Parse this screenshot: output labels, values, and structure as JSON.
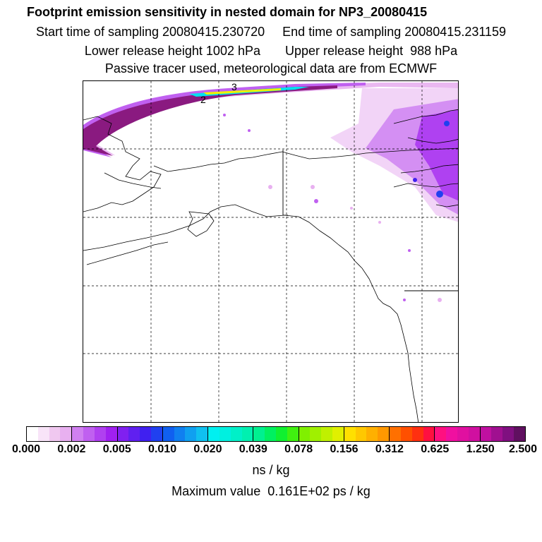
{
  "header": {
    "title": "Footprint emission sensitivity in nested domain for NP3_20080415",
    "sampling": "Start time of sampling 20080415.230720     End time of sampling 20080415.231159",
    "release": "Lower release height 1002 hPa       Upper release height  988 hPa",
    "tracer": "Passive tracer used, meteorological data are from ECMWF"
  },
  "map": {
    "contour_labels": [
      "2",
      "3"
    ],
    "colors": {
      "outline": "#000000",
      "grid": "#000000"
    }
  },
  "colorbar": {
    "tick_labels": [
      "0.000",
      "0.002",
      "0.005",
      "0.010",
      "0.020",
      "0.039",
      "0.078",
      "0.156",
      "0.312",
      "0.625",
      "1.250",
      "2.500"
    ],
    "segments": [
      [
        "#ffffff",
        "#f8e4f8",
        "#f0c8f0",
        "#e8b0f0"
      ],
      [
        "#d080f0",
        "#c060f0",
        "#b040f0",
        "#a020f0"
      ],
      [
        "#8020f0",
        "#6020f0",
        "#4020f0",
        "#2040f0"
      ],
      [
        "#1060f0",
        "#1080f0",
        "#10a0f0",
        "#10c0f0"
      ],
      [
        "#00f0f0",
        "#00f0e0",
        "#00f0c8",
        "#00f0b0"
      ],
      [
        "#00f090",
        "#00f060",
        "#10f030",
        "#40f010"
      ],
      [
        "#80f000",
        "#a0f000",
        "#c0f000",
        "#e0f000"
      ],
      [
        "#ffe000",
        "#ffc800",
        "#ffb000",
        "#ff9800"
      ],
      [
        "#ff7000",
        "#ff5000",
        "#ff3010",
        "#ff1040"
      ],
      [
        "#ff1080",
        "#f010a0",
        "#e010a0",
        "#d010a0"
      ],
      [
        "#c010a0",
        "#a01090",
        "#801080",
        "#601060"
      ]
    ]
  },
  "units": "ns / kg",
  "maximum": "Maximum value  0.161E+02 ps / kg"
}
